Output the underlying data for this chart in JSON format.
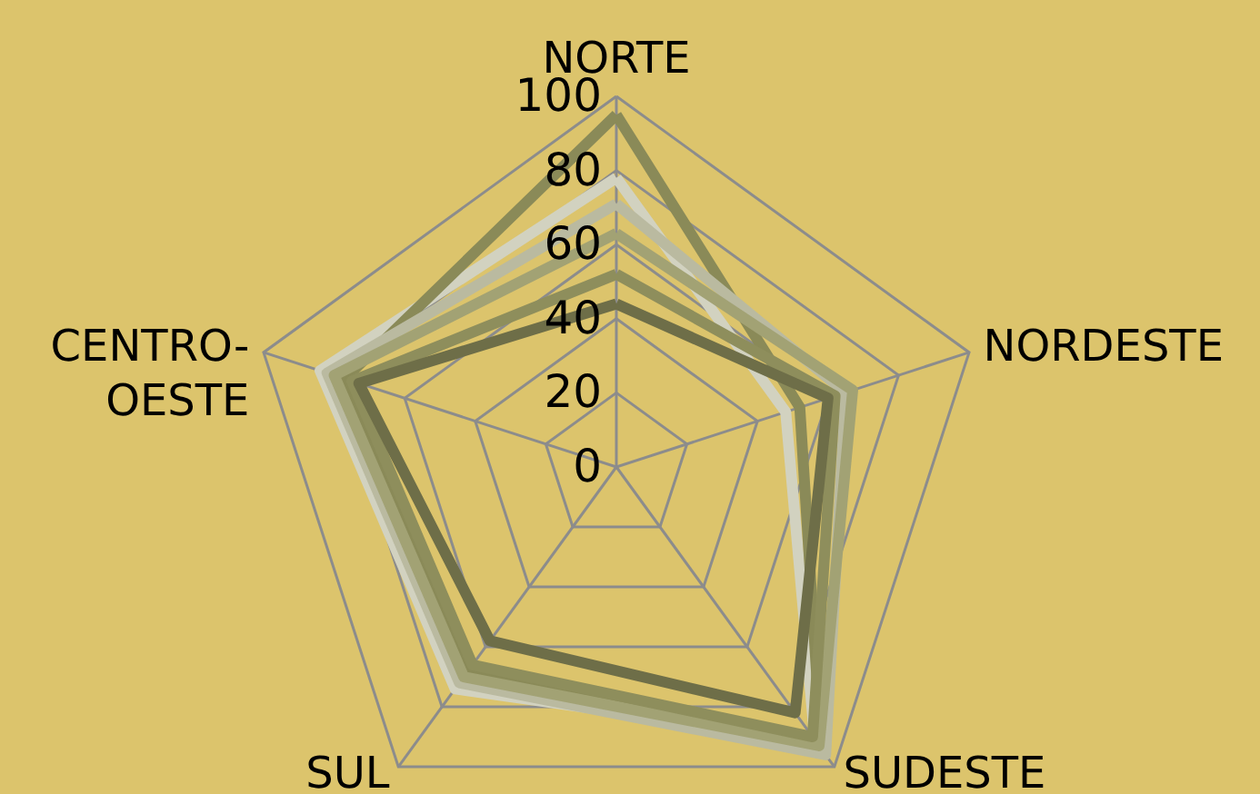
{
  "chart_data": {
    "type": "radar",
    "categories": [
      "NORTE",
      "NORDESTE",
      "SUDESTE",
      "SUL",
      "CENTRO-OESTE"
    ],
    "ylim": [
      0,
      100
    ],
    "yticks": [
      0,
      20,
      40,
      60,
      80,
      100
    ],
    "grid": true,
    "series": [
      {
        "color": "#d2d2c0",
        "values": [
          78,
          48,
          91,
          74,
          84
        ]
      },
      {
        "color": "#8a8a58",
        "values": [
          95,
          52,
          94,
          68,
          77
        ]
      },
      {
        "color": "#babaa0",
        "values": [
          71,
          65,
          96,
          72,
          82
        ]
      },
      {
        "color": "#a2a274",
        "values": [
          63,
          67,
          93,
          70,
          80
        ]
      },
      {
        "color": "#8e8e5c",
        "values": [
          52,
          62,
          90,
          66,
          75
        ]
      },
      {
        "color": "#6e6e48",
        "values": [
          44,
          60,
          82,
          58,
          73
        ]
      }
    ]
  }
}
